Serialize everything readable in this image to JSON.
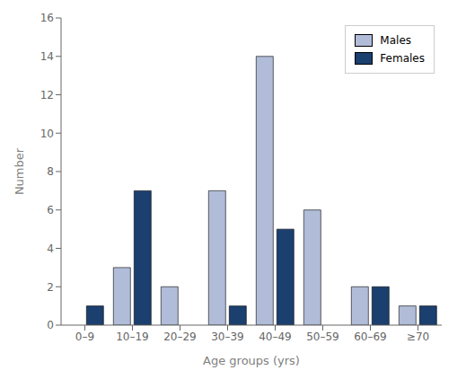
{
  "chart_data": {
    "type": "bar",
    "categories": [
      "0–9",
      "10–19",
      "20–29",
      "30–39",
      "40–49",
      "50–59",
      "60–69",
      "≥70"
    ],
    "series": [
      {
        "name": "Males",
        "color": "#b0bcd8",
        "values": [
          0,
          3,
          2,
          7,
          14,
          6,
          2,
          1
        ]
      },
      {
        "name": "Females",
        "color": "#1b3f6e",
        "values": [
          1,
          7,
          0,
          1,
          5,
          0,
          2,
          1
        ]
      }
    ],
    "xlabel": "Age groups (yrs)",
    "ylabel": "Number",
    "ylim": [
      0,
      16
    ],
    "yticks": [
      0,
      2,
      4,
      6,
      8,
      10,
      12,
      14,
      16
    ],
    "grid": false,
    "legend": "upper right"
  }
}
